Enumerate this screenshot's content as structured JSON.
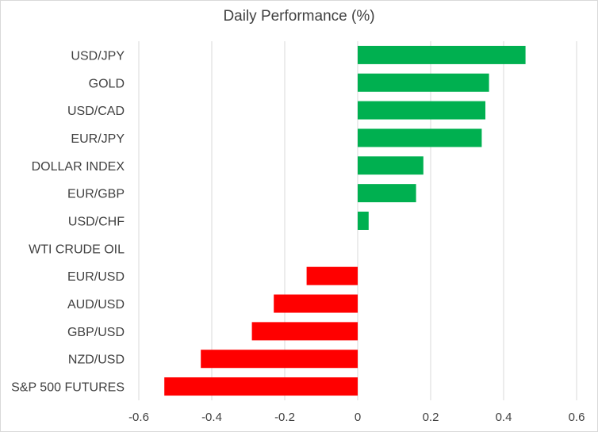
{
  "chart_data": {
    "type": "bar",
    "orientation": "horizontal",
    "title": "Daily Performance (%)",
    "categories": [
      "USD/JPY",
      "GOLD",
      "USD/CAD",
      "EUR/JPY",
      "DOLLAR INDEX",
      "EUR/GBP",
      "USD/CHF",
      "WTI CRUDE OIL",
      "EUR/USD",
      "AUD/USD",
      "GBP/USD",
      "NZD/USD",
      "S&P 500 FUTURES"
    ],
    "values": [
      0.46,
      0.36,
      0.35,
      0.34,
      0.18,
      0.16,
      0.03,
      0.0,
      -0.14,
      -0.23,
      -0.29,
      -0.43,
      -0.53
    ],
    "xlim": [
      -0.6,
      0.6
    ],
    "xticks": [
      "-0.6",
      "-0.4",
      "-0.2",
      "0",
      "0.2",
      "0.4",
      "0.6"
    ],
    "xtick_values": [
      -0.6,
      -0.4,
      -0.2,
      0,
      0.2,
      0.4,
      0.6
    ],
    "grid": "vertical",
    "positive_color": "#00b050",
    "negative_color": "#ff0000",
    "grid_color": "#d9d9d9"
  }
}
